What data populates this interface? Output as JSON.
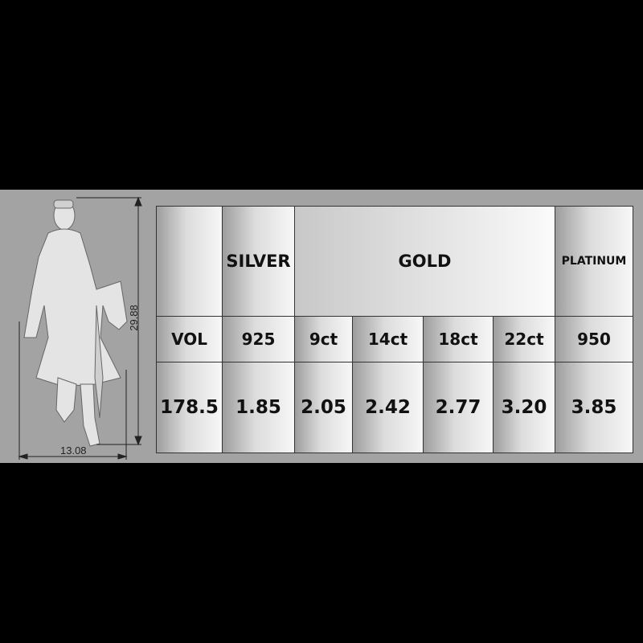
{
  "figure": {
    "height_label": "29.88",
    "width_label": "13.08"
  },
  "table": {
    "header_row": [
      "",
      "SILVER",
      "GOLD",
      "PLATINUM"
    ],
    "subheader_row": [
      "VOL",
      "925",
      "9ct",
      "14ct",
      "18ct",
      "22ct",
      "950"
    ],
    "value_row": [
      "178.5",
      "1.85",
      "2.05",
      "2.42",
      "2.77",
      "3.20",
      "3.85"
    ]
  }
}
